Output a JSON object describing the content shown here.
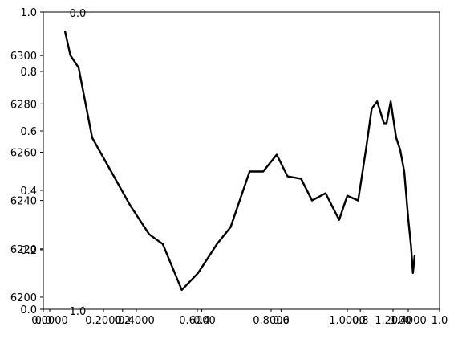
{
  "chart_data": {
    "type": "line",
    "title": "",
    "xlabel": "",
    "ylabel": "",
    "series": [
      {
        "color": "#000000",
        "x": [
          1600,
          1800,
          2100,
          2600,
          3300,
          4000,
          4700,
          5200,
          5900,
          6500,
          7200,
          7700,
          8400,
          8900,
          9400,
          9800,
          10300,
          10700,
          11200,
          11700,
          12000,
          12400,
          12700,
          12900,
          13100,
          13350,
          13450,
          13600,
          13800,
          13950,
          14100,
          14250,
          14350,
          14420,
          14480
        ],
        "values": [
          6310,
          6300,
          6295,
          6266,
          6252,
          6238,
          6226,
          6222,
          6203,
          6210,
          6222,
          6229,
          6252,
          6252,
          6259,
          6250,
          6249,
          6240,
          6243,
          6232,
          6242,
          6240,
          6262,
          6278,
          6281,
          6272,
          6272,
          6281,
          6266,
          6261,
          6252,
          6232,
          6221,
          6210,
          6217
        ]
      }
    ],
    "axes": {
      "main_x_ticks": [
        "0.0000",
        "0.2000",
        "0.4000",
        "0.6000",
        "0.8000",
        "1.0000",
        "1.2000",
        "1.4000"
      ],
      "main_y_ticks": [
        "6200",
        "6220",
        "6240",
        "6260",
        "6280",
        "6300"
      ],
      "overlay_x_ticks": [
        "0.0",
        "0.2",
        "0.4",
        "0.6",
        "0.8",
        "1.0"
      ],
      "overlay_y_ticks": [
        "0.0",
        "0.2",
        "0.4",
        "0.6",
        "0.8",
        "1.0"
      ],
      "stray_labels": [
        "0.0",
        "1.0"
      ]
    }
  }
}
